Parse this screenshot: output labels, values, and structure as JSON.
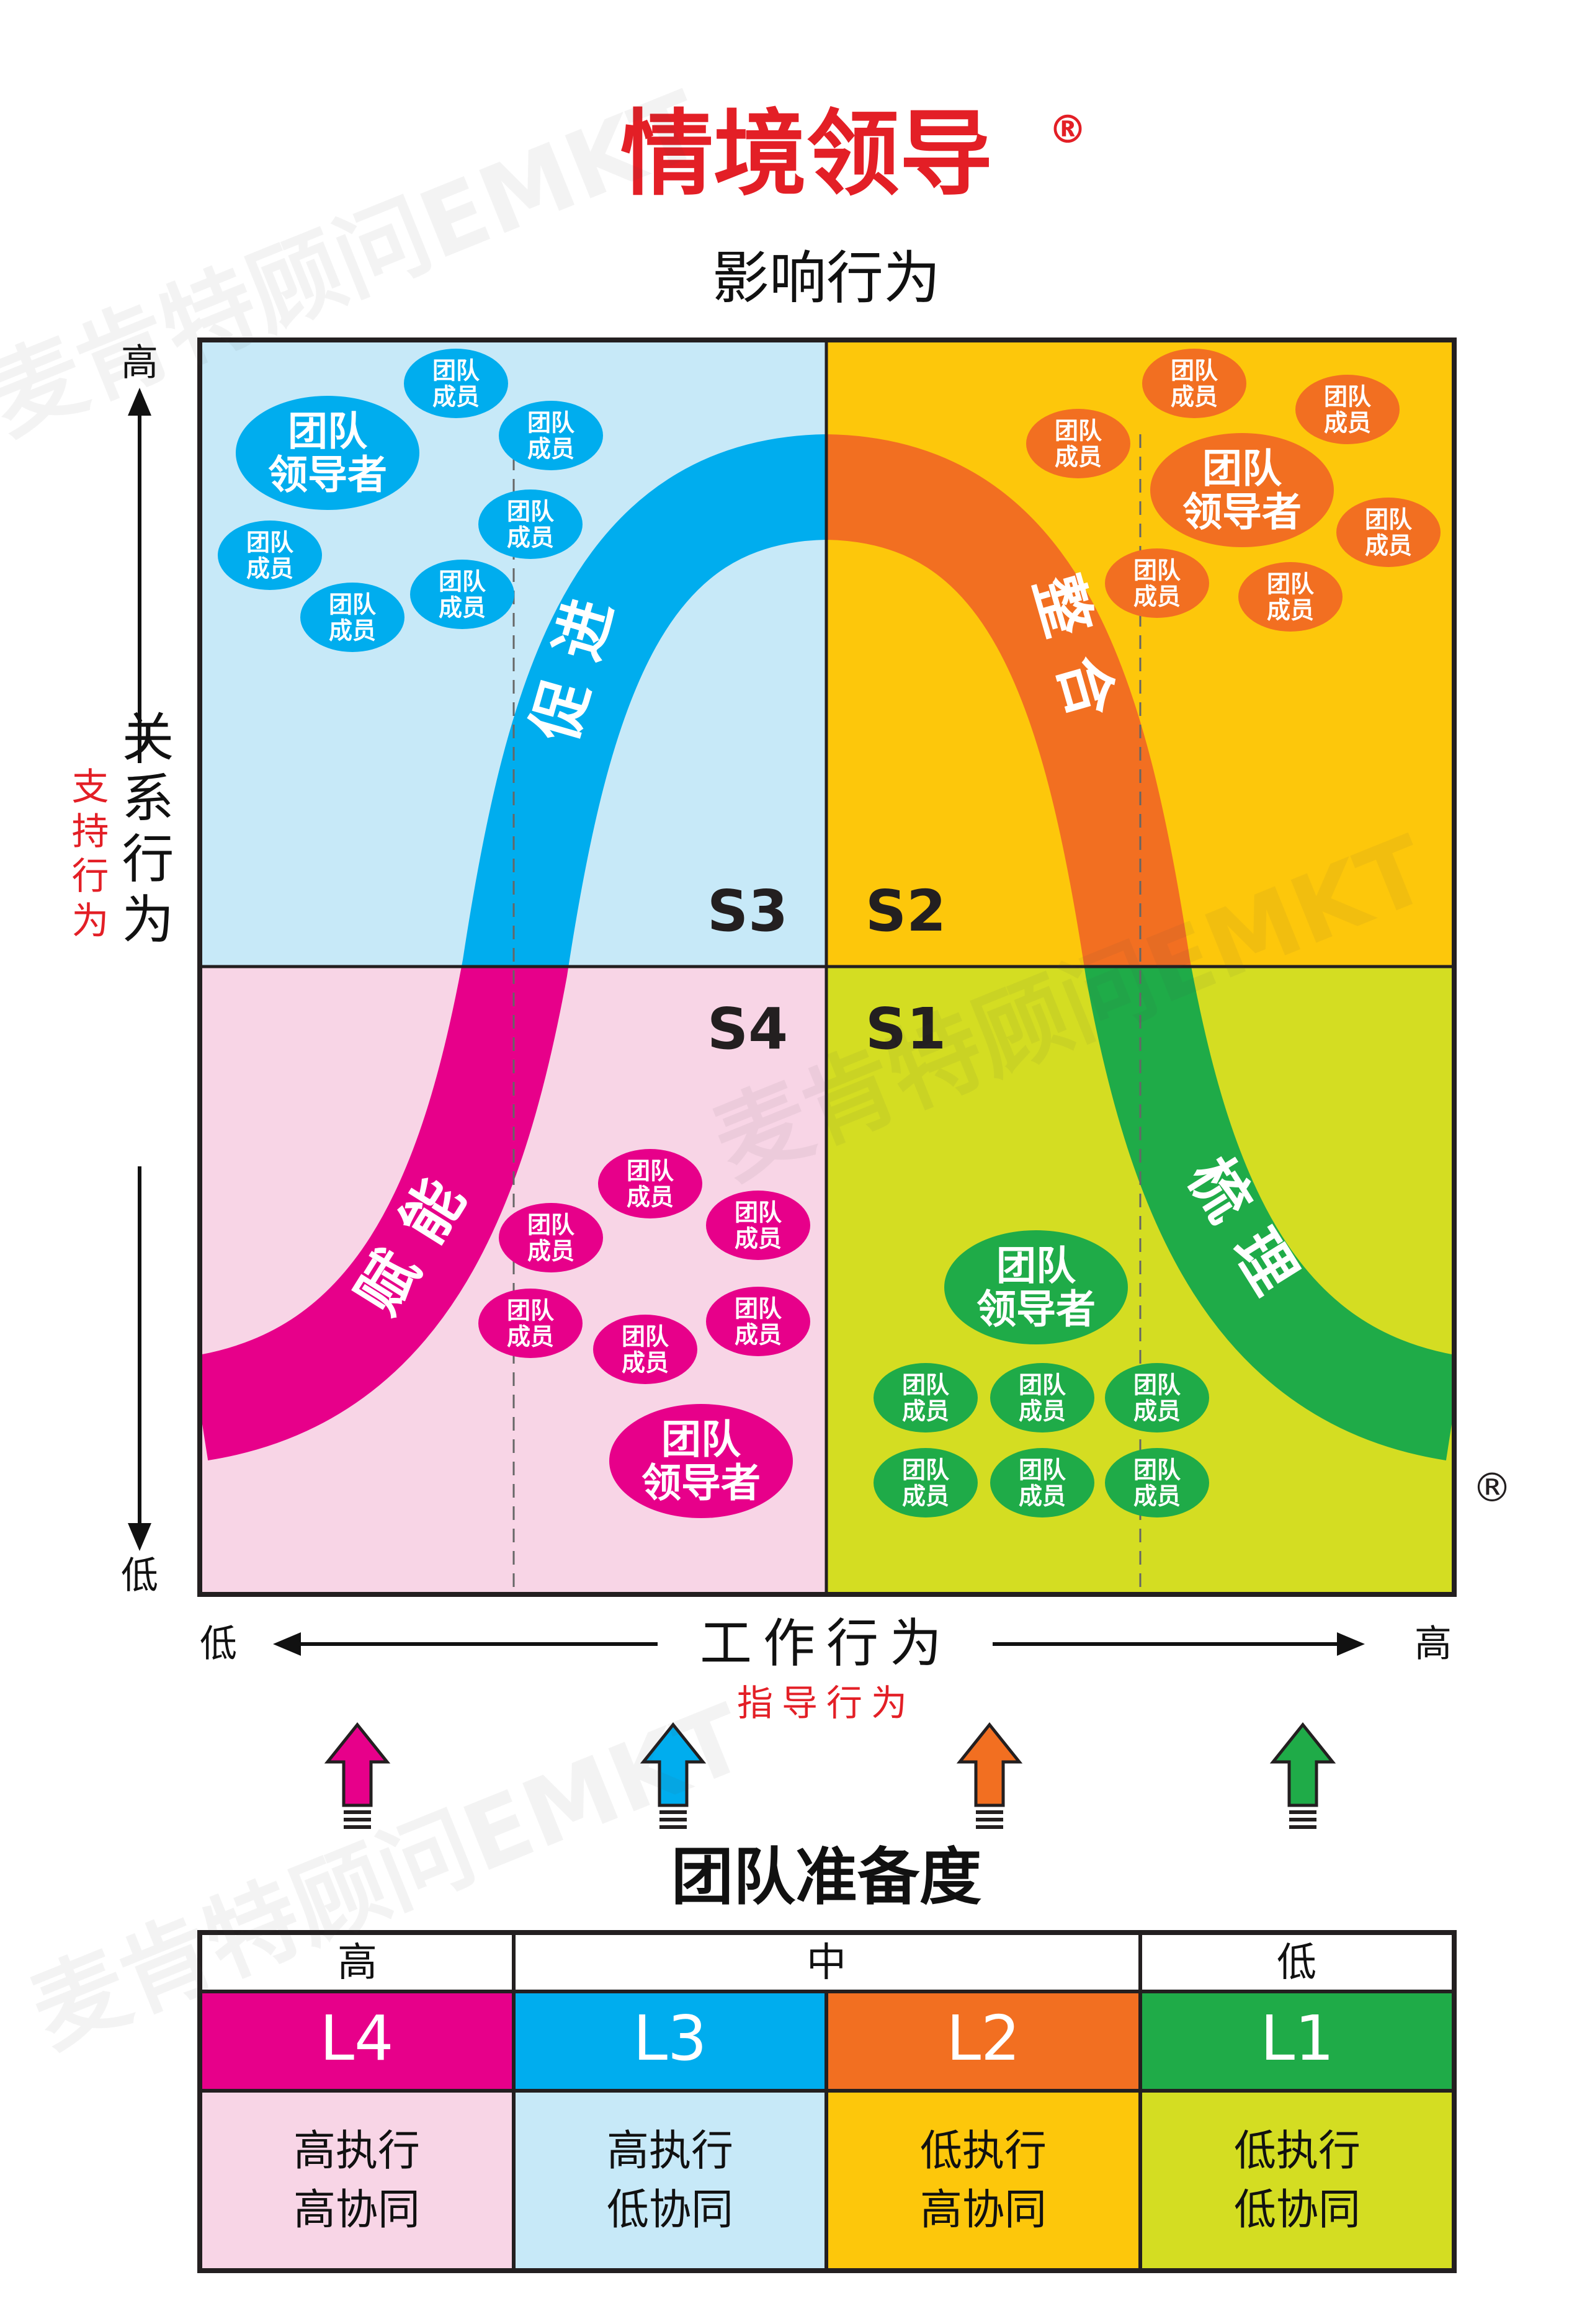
{
  "title": "情境领导",
  "title_mark": "®",
  "influence_label": "影响行为",
  "relationship_label": "关系行为",
  "support_label": "支持行为",
  "task_label": "工作行为",
  "directive_label": "指导行为",
  "axis": {
    "high": "高",
    "low": "低"
  },
  "registered_mark": "®",
  "quadrants": [
    {
      "id": "S3",
      "label": "S3",
      "band_label": "促进",
      "color": "#00adee",
      "bg": "#c7e9f8"
    },
    {
      "id": "S2",
      "label": "S2",
      "band_label": "整合",
      "color": "#f26f21",
      "bg": "#fdc70b"
    },
    {
      "id": "S4",
      "label": "S4",
      "band_label": "赋能",
      "color": "#e7008a",
      "bg": "#f8d5e6"
    },
    {
      "id": "S1",
      "label": "S1",
      "band_label": "梳理",
      "color": "#1fab48",
      "bg": "#d4dd22"
    }
  ],
  "bubbles": {
    "leader": [
      "团队",
      "领导者"
    ],
    "member": [
      "团队",
      "成员"
    ]
  },
  "readiness_title": "团队准备度",
  "readiness_levels": {
    "high": "高",
    "mid": "中",
    "low": "低"
  },
  "levels": [
    {
      "code": "L4",
      "line1": "高执行",
      "line2": "高协同",
      "color": "#e7008a",
      "bg": "#f8d5e6"
    },
    {
      "code": "L3",
      "line1": "高执行",
      "line2": "低协同",
      "color": "#00adee",
      "bg": "#c7e9f8"
    },
    {
      "code": "L2",
      "line1": "低执行",
      "line2": "高协同",
      "color": "#f26f21",
      "bg": "#fdc70b"
    },
    {
      "code": "L1",
      "line1": "低执行",
      "line2": "低协同",
      "color": "#1fab48",
      "bg": "#d4dd22"
    }
  ],
  "watermark": "麦肯特顾问EMKT"
}
